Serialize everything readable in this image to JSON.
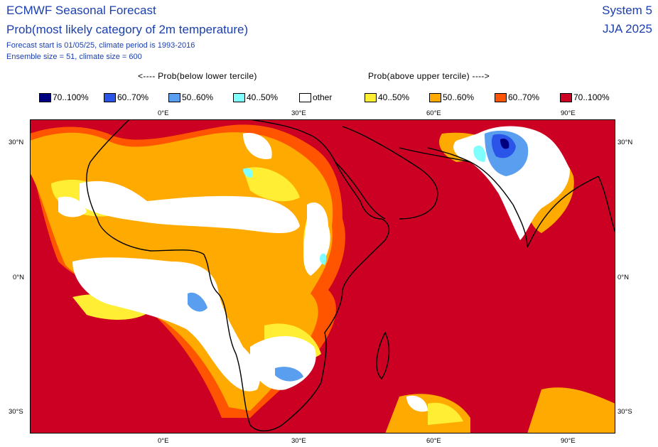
{
  "header": {
    "title": "ECMWF Seasonal Forecast",
    "subtitle": "Prob(most likely category of 2m temperature)",
    "forecast_info": "Forecast start is 01/05/25, climate period is 1993-2016",
    "ensemble_info": "Ensemble size = 51, climate size = 600",
    "system": "System 5",
    "season": "JJA 2025"
  },
  "legend_headers": {
    "below": "<---- Prob(below lower tercile)",
    "above": "Prob(above upper tercile) ---->"
  },
  "legend": [
    {
      "label": "70..100%",
      "color": "#00007f"
    },
    {
      "label": "60..70%",
      "color": "#2a55e8"
    },
    {
      "label": "50..60%",
      "color": "#5a9ef0"
    },
    {
      "label": "40..50%",
      "color": "#80ffff"
    },
    {
      "label": "other",
      "color": "#ffffff"
    },
    {
      "label": "40..50%",
      "color": "#ffee33"
    },
    {
      "label": "50..60%",
      "color": "#ffaa00"
    },
    {
      "label": "60..70%",
      "color": "#ff5500"
    },
    {
      "label": "70..100%",
      "color": "#cc0022"
    }
  ],
  "axes": {
    "lon_top": [
      "0°E",
      "30°E",
      "60°E",
      "90°E"
    ],
    "lon_bottom": [
      "0°E",
      "30°E",
      "60°E",
      "90°E"
    ],
    "lat_left": [
      "30°N",
      "0°N",
      "30°S"
    ],
    "lat_right": [
      "30°N",
      "0°N",
      "30°S"
    ]
  }
}
